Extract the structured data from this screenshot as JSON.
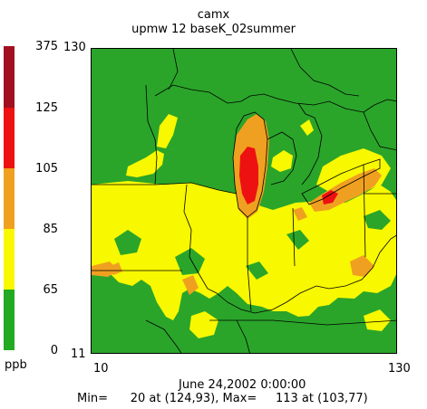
{
  "header": {
    "title": "camx",
    "subtitle": "upmw 12 baseK_02summer"
  },
  "legend": {
    "unit": "ppb",
    "bins": [
      {
        "label": "375",
        "color": "#a01020"
      },
      {
        "label": "125",
        "color": "#ee1111"
      },
      {
        "label": "105",
        "color": "#f0a020"
      },
      {
        "label": "85",
        "color": "#f8f800"
      },
      {
        "label": "65",
        "color": "#22aa22"
      },
      {
        "label": "0",
        "color": ""
      }
    ]
  },
  "axes": {
    "y_top": "130",
    "y_bottom": "11",
    "x_left": "10",
    "x_right": "130"
  },
  "footer": {
    "date": "June 24,2002 0:00:00",
    "stats": "Min=      20 at (124,93), Max=     113 at (103,77)"
  },
  "colors": {
    "green": "#2aa52a",
    "yellow": "#f8f800",
    "orange": "#f0a020",
    "red": "#ee1111",
    "dark_red": "#a01020"
  }
}
